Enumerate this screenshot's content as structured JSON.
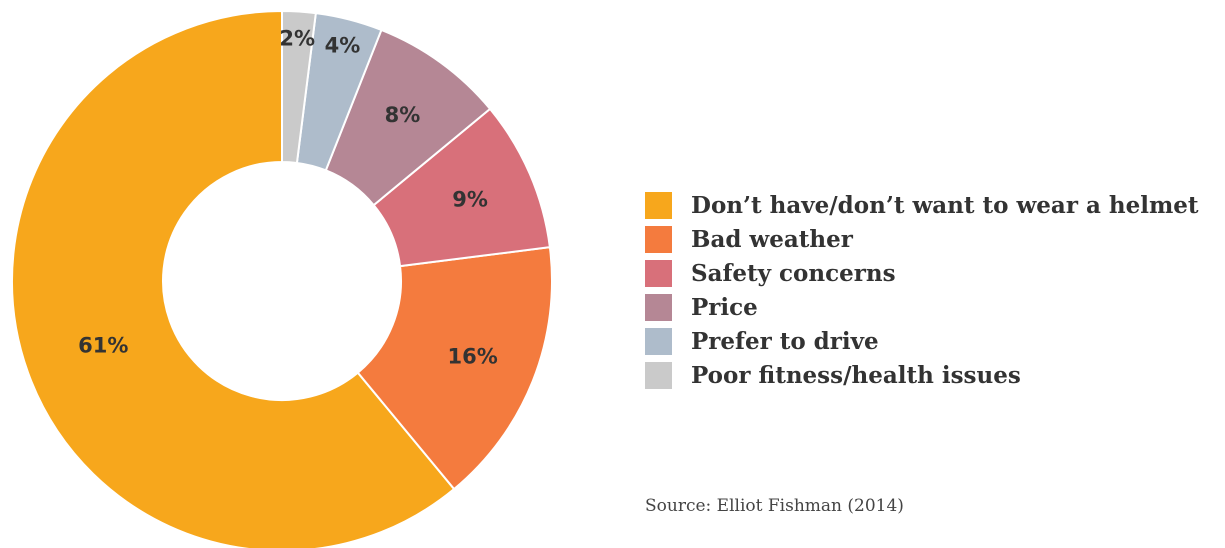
{
  "chart_data": {
    "type": "pie",
    "variant": "donut",
    "categories": [
      "Don’t have/don’t want to wear a helmet",
      "Bad weather",
      "Safety concerns",
      "Price",
      "Prefer to drive",
      "Poor fitness/health issues"
    ],
    "values": [
      61,
      16,
      9,
      8,
      4,
      2
    ],
    "data_labels": [
      "61%",
      "16%",
      "9%",
      "8%",
      "4%",
      "2%"
    ],
    "colors": [
      "#F7A71C",
      "#F47B3E",
      "#D8707A",
      "#B58795",
      "#AEBCCB",
      "#CACACA"
    ],
    "legend_placement": "right"
  },
  "source": "Source: Elliot Fishman (2014)"
}
